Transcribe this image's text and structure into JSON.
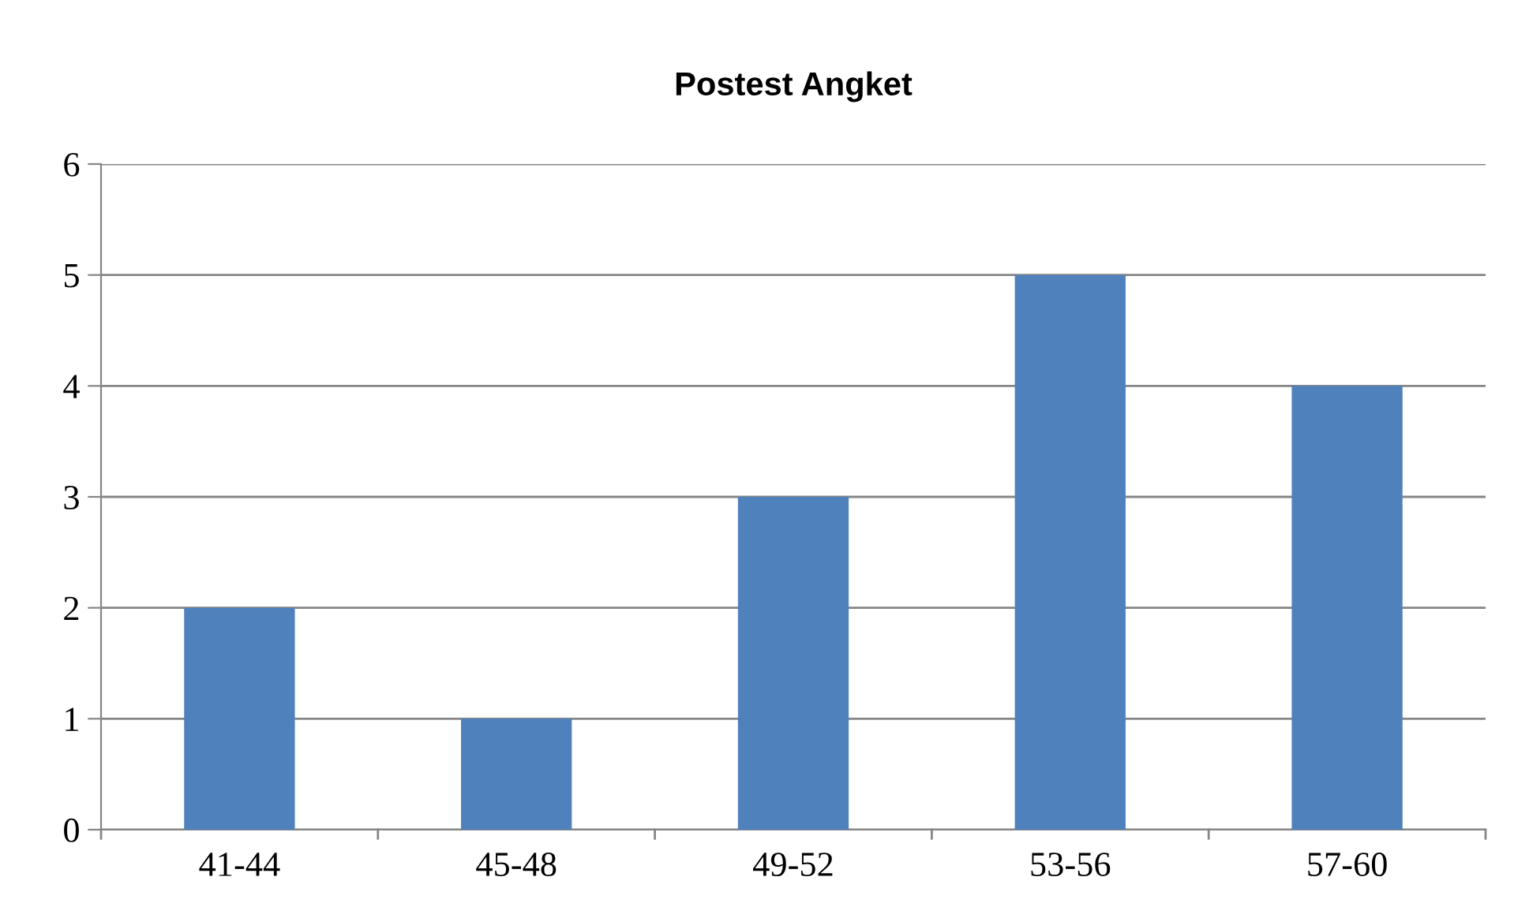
{
  "chart_data": {
    "type": "bar",
    "title": "Postest Angket",
    "categories": [
      "41-44",
      "45-48",
      "49-52",
      "53-56",
      "57-60"
    ],
    "values": [
      2,
      1,
      3,
      5,
      4
    ],
    "color": "#4f81bd",
    "ylim": [
      0,
      6
    ],
    "yticks": [
      0,
      1,
      2,
      3,
      4,
      5,
      6
    ],
    "grid": "y"
  }
}
